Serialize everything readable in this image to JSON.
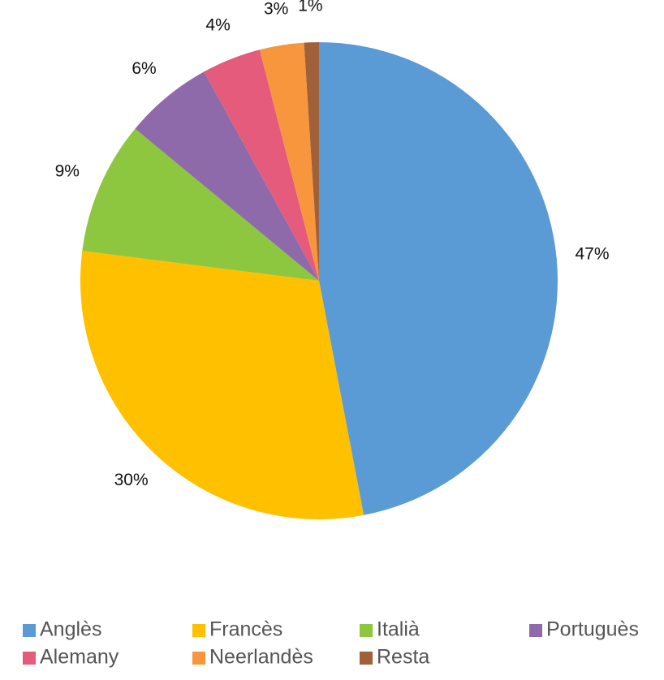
{
  "chart_data": {
    "type": "pie",
    "categories": [
      "Anglès",
      "Francès",
      "Italià",
      "Portuguès",
      "Alemany",
      "Neerlandès",
      "Resta"
    ],
    "values": [
      47,
      30,
      9,
      6,
      4,
      3,
      1
    ],
    "value_labels": [
      "47%",
      "30%",
      "9%",
      "6%",
      "4%",
      "3%",
      "1%"
    ],
    "colors": [
      "#5b9bd5",
      "#ffc000",
      "#8dc63f",
      "#8e6aab",
      "#e45b7c",
      "#f7963d",
      "#a0603a"
    ],
    "legend": "bottom"
  }
}
